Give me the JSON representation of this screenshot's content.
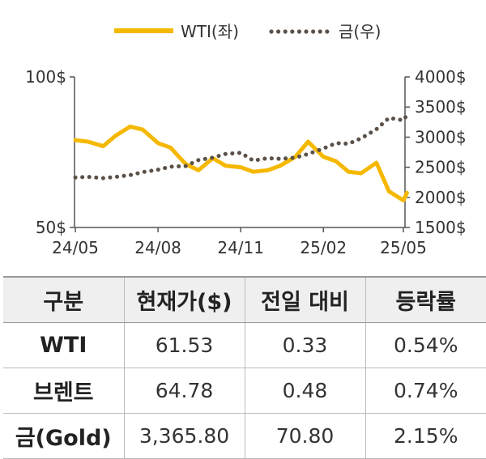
{
  "chart_data": {
    "type": "line",
    "legend": [
      {
        "label": "WTI(좌)",
        "style": "solid",
        "color": "#F5B800"
      },
      {
        "label": "금(우)",
        "style": "dotted",
        "color": "#5C5148"
      }
    ],
    "legend_position": "top-center",
    "x_ticks": [
      "24/05",
      "24/08",
      "24/11",
      "25/02",
      "25/05"
    ],
    "y_left": {
      "ticks": [
        "100$",
        "50$"
      ],
      "range": [
        50,
        100
      ]
    },
    "y_right": {
      "ticks": [
        "4000$",
        "3500$",
        "3000$",
        "2500$",
        "2000$",
        "1500$"
      ],
      "range": [
        1500,
        4000
      ]
    },
    "grid": false,
    "series": [
      {
        "name": "WTI(좌)",
        "axis": "left",
        "x": [
          "24/05/01",
          "24/05/15",
          "24/06/01",
          "24/06/15",
          "24/07/01",
          "24/07/15",
          "24/08/01",
          "24/08/15",
          "24/09/01",
          "24/09/15",
          "24/10/01",
          "24/10/15",
          "24/11/01",
          "24/11/15",
          "24/12/01",
          "24/12/15",
          "25/01/01",
          "25/01/15",
          "25/02/01",
          "25/02/15",
          "25/03/01",
          "25/03/15",
          "25/04/01",
          "25/04/15",
          "25/05/01",
          "25/05/05"
        ],
        "values": [
          79.0,
          78.5,
          77.0,
          80.5,
          83.5,
          82.5,
          78.0,
          76.5,
          71.0,
          69.0,
          73.0,
          70.5,
          70.0,
          68.5,
          69.0,
          70.5,
          73.5,
          78.5,
          73.5,
          72.0,
          68.5,
          68.0,
          71.5,
          62.0,
          59.0,
          61.53
        ]
      },
      {
        "name": "금(우)",
        "axis": "right",
        "x": [
          "24/05/01",
          "24/05/15",
          "24/06/01",
          "24/06/15",
          "24/07/01",
          "24/07/15",
          "24/08/01",
          "24/08/15",
          "24/09/01",
          "24/09/15",
          "24/10/01",
          "24/10/15",
          "24/11/01",
          "24/11/15",
          "24/12/01",
          "24/12/15",
          "25/01/01",
          "25/01/15",
          "25/02/01",
          "25/02/15",
          "25/03/01",
          "25/03/15",
          "25/04/01",
          "25/04/15",
          "25/05/01",
          "25/05/05"
        ],
        "values": [
          2330,
          2340,
          2320,
          2340,
          2370,
          2420,
          2460,
          2510,
          2520,
          2620,
          2660,
          2720,
          2740,
          2610,
          2650,
          2640,
          2660,
          2720,
          2810,
          2900,
          2890,
          2980,
          3130,
          3320,
          3280,
          3365.8
        ]
      }
    ]
  },
  "table": {
    "headers": [
      "구분",
      "현재가($)",
      "전일 대비",
      "등락률"
    ],
    "rows": [
      [
        "WTI",
        "61.53",
        "0.33",
        "0.54%"
      ],
      [
        "브렌트",
        "64.78",
        "0.48",
        "0.74%"
      ],
      [
        "금(Gold)",
        "3,365.80",
        "70.80",
        "2.15%"
      ]
    ]
  }
}
